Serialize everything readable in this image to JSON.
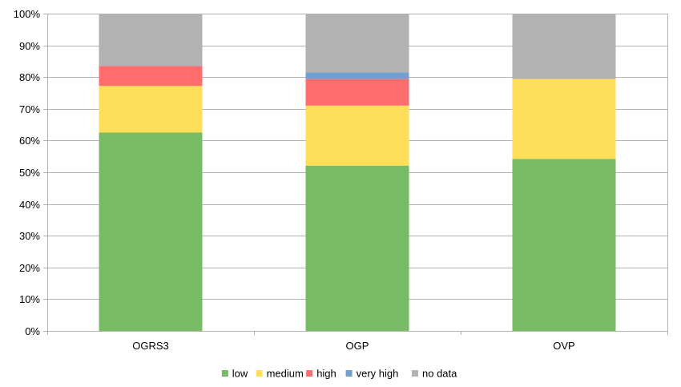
{
  "chart_data": {
    "type": "bar",
    "stacked": true,
    "percent": true,
    "title": "",
    "xlabel": "",
    "ylabel": "",
    "ylim": [
      0,
      100
    ],
    "yticks": [
      "0%",
      "10%",
      "20%",
      "30%",
      "40%",
      "50%",
      "60%",
      "70%",
      "80%",
      "90%",
      "100%"
    ],
    "grid": true,
    "legend_position": "bottom",
    "categories": [
      "OGRS3",
      "OGP",
      "OVP"
    ],
    "series": [
      {
        "name": "low",
        "color": "#77bc65",
        "values": [
          62.5,
          52.1,
          54.2
        ]
      },
      {
        "name": "medium",
        "color": "#ffde59",
        "values": [
          14.7,
          18.9,
          25.2
        ]
      },
      {
        "name": "high",
        "color": "#ff6d6d",
        "values": [
          6.3,
          8.4,
          0
        ]
      },
      {
        "name": "very high",
        "color": "#729fcf",
        "values": [
          0,
          2.1,
          0
        ]
      },
      {
        "name": "no data",
        "color": "#b2b2b2",
        "values": [
          16.5,
          18.5,
          20.6
        ]
      }
    ]
  }
}
